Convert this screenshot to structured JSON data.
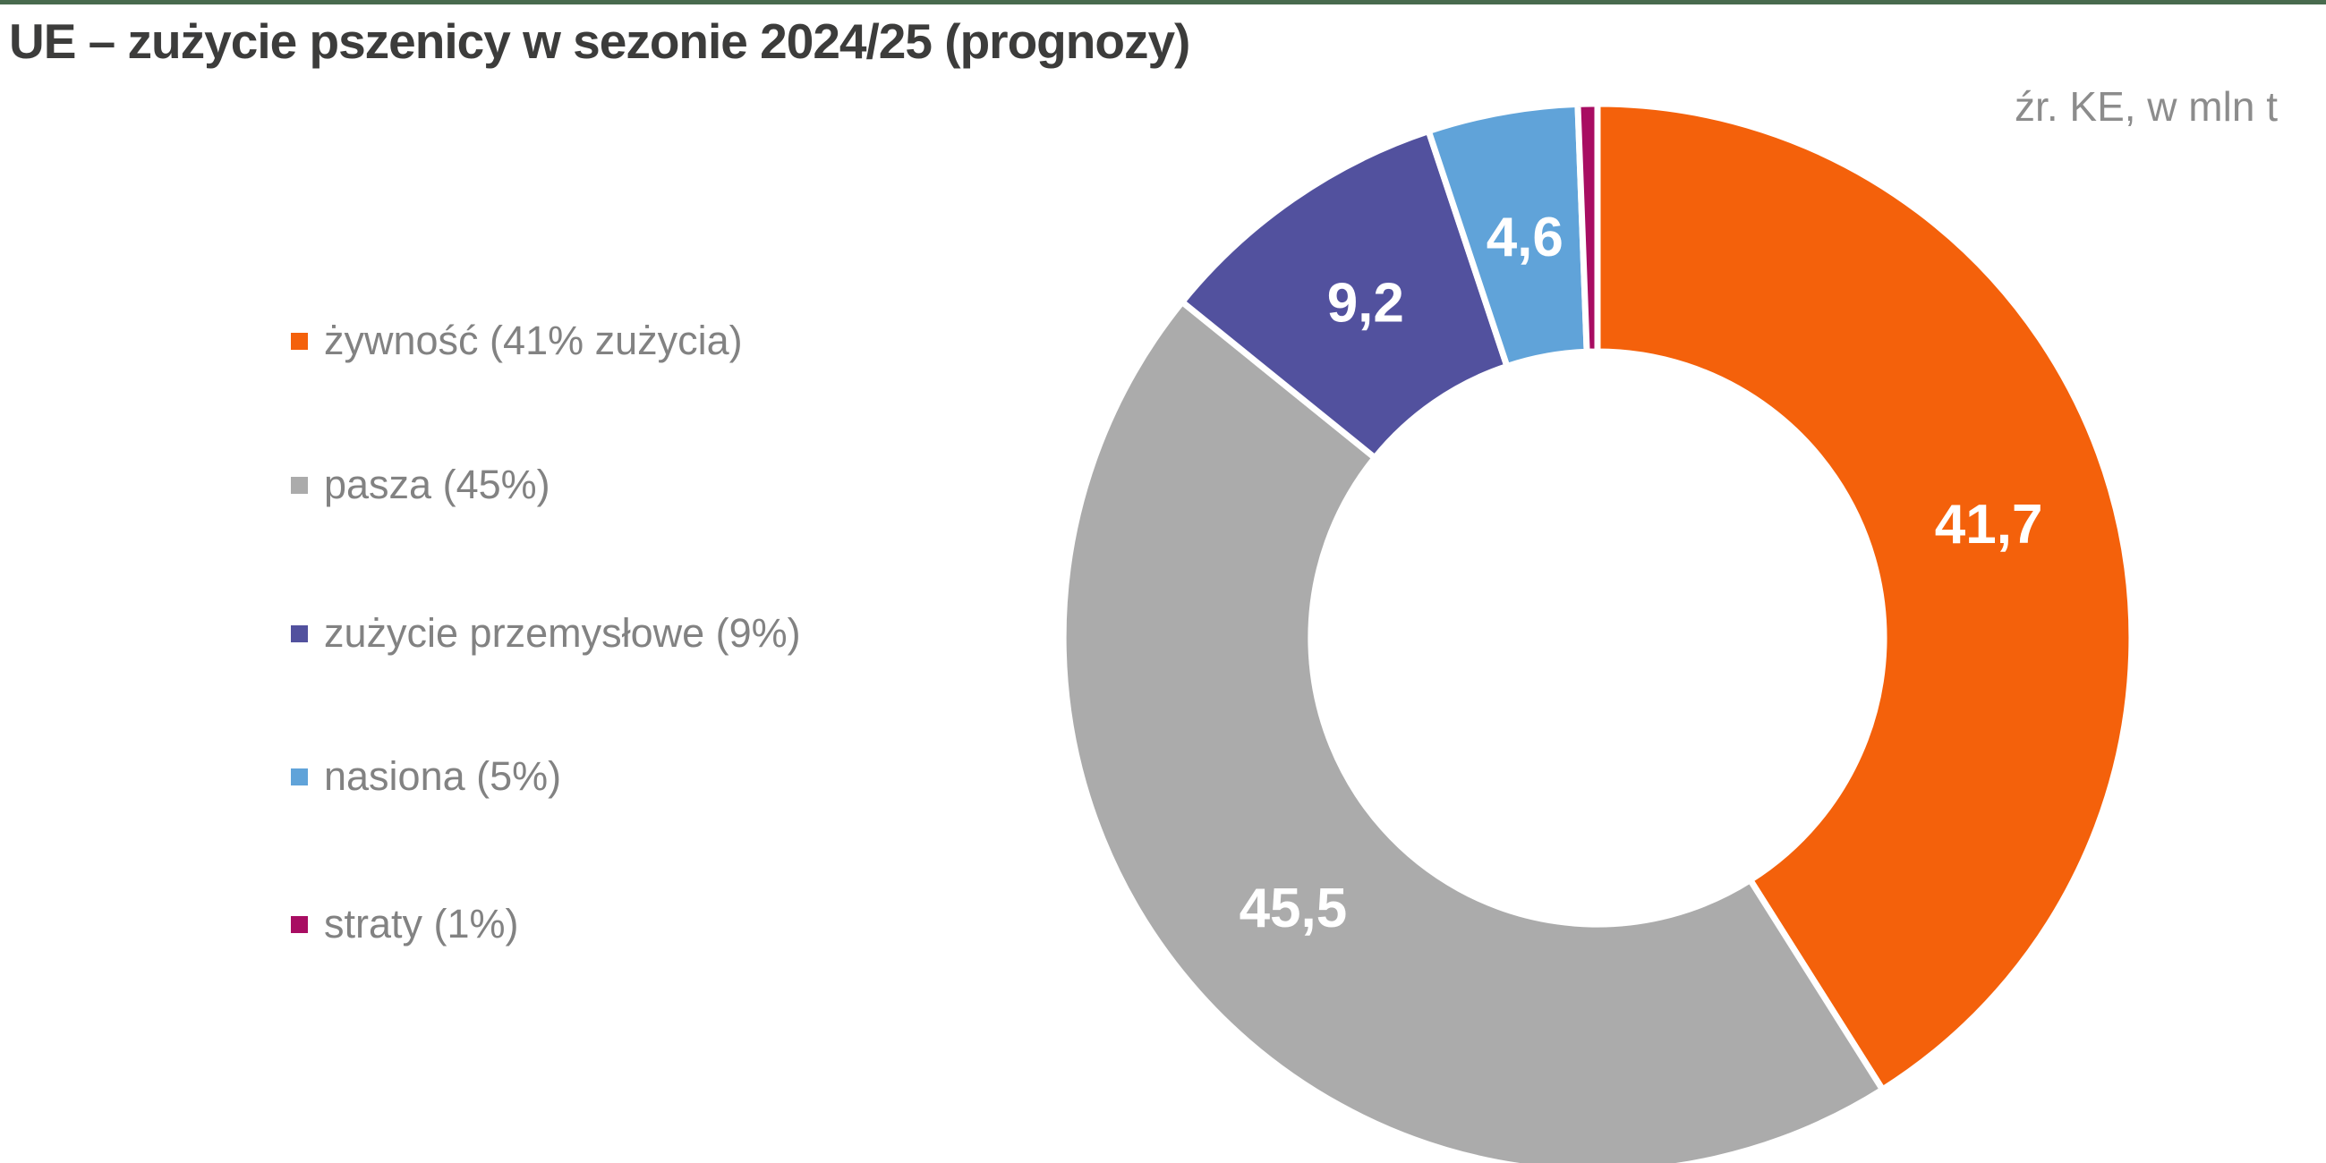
{
  "page": {
    "title": "UE – zużycie pszenicy w sezonie 2024/25 (prognozy)",
    "source_note": "źr. KE, w mln t"
  },
  "colors": {
    "accent_bar": "#486A4E",
    "title_text": "#3C3C3B",
    "legend_text": "#828282",
    "source_text": "#8C8C8C",
    "slice_label_text": "#FFFFFF",
    "slice_border": "#FFFFFF"
  },
  "legend": {
    "position": "left",
    "items": [
      {
        "label": "żywność (41% zużycia)",
        "color": "#F4610B"
      },
      {
        "label": "pasza (45%)",
        "color": "#ABABAB"
      },
      {
        "label": "zużycie przemysłowe (9%)",
        "color": "#52519E"
      },
      {
        "label": "nasiona (5%)",
        "color": "#60A3D9"
      },
      {
        "label": "straty (1%)",
        "color": "#A80D62"
      }
    ]
  },
  "chart_data": {
    "type": "pie",
    "subtype": "donut",
    "title": "UE – zużycie pszenicy w sezonie 2024/25 (prognozy)",
    "source": "źr. KE, w mln t",
    "unit": "mln t",
    "direction": "clockwise",
    "start_angle_deg": 0,
    "legend_position": "left",
    "series": [
      {
        "name": "żywność",
        "percent_label": "41% zużycia",
        "value": 41.7,
        "data_label": "41,7",
        "color": "#F4610B"
      },
      {
        "name": "pasza",
        "percent_label": "45%",
        "value": 45.5,
        "data_label": "45,5",
        "color": "#ABABAB"
      },
      {
        "name": "zużycie przemysłowe",
        "percent_label": "9%",
        "value": 9.2,
        "data_label": "9,2",
        "color": "#52519E"
      },
      {
        "name": "nasiona",
        "percent_label": "5%",
        "value": 4.6,
        "data_label": "4,6",
        "color": "#60A3D9"
      },
      {
        "name": "straty",
        "percent_label": "1%",
        "value": 0.6,
        "data_label": "",
        "color": "#A80D62"
      }
    ]
  }
}
